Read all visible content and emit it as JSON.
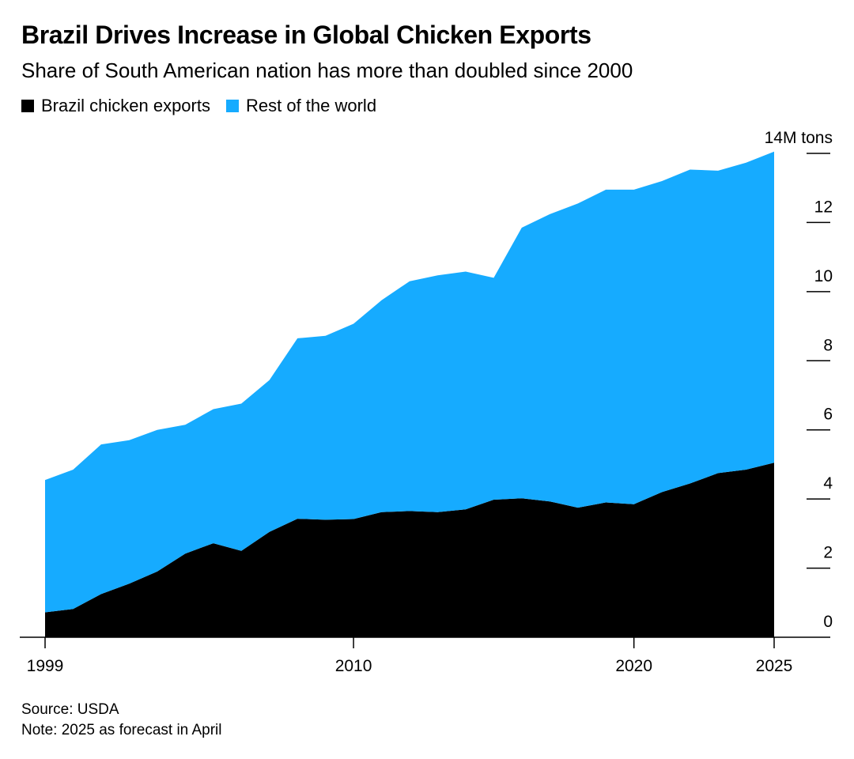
{
  "header": {
    "title": "Brazil Drives Increase in Global Chicken Exports",
    "subtitle": "Share of South American nation has more than doubled since 2000"
  },
  "footer": {
    "source": "Source: USDA",
    "note": "Note: 2025 as forecast in April"
  },
  "chart_data": {
    "type": "area",
    "stacked": true,
    "title": "Brazil Drives Increase in Global Chicken Exports",
    "subtitle": "Share of South American nation has more than doubled since 2000",
    "x": [
      1999,
      2000,
      2001,
      2002,
      2003,
      2004,
      2005,
      2006,
      2007,
      2008,
      2009,
      2010,
      2011,
      2012,
      2013,
      2014,
      2015,
      2016,
      2017,
      2018,
      2019,
      2020,
      2021,
      2022,
      2023,
      2024,
      2025
    ],
    "series": [
      {
        "name": "Brazil chicken exports",
        "color": "#000000",
        "values": [
          0.72,
          0.82,
          1.25,
          1.55,
          1.9,
          2.42,
          2.72,
          2.5,
          3.05,
          3.43,
          3.4,
          3.42,
          3.62,
          3.65,
          3.62,
          3.7,
          3.98,
          4.02,
          3.93,
          3.75,
          3.9,
          3.85,
          4.2,
          4.45,
          4.75,
          4.85,
          5.05
        ]
      },
      {
        "name": "Rest of the world",
        "color": "#16abff",
        "values": [
          3.83,
          4.03,
          4.33,
          4.15,
          4.1,
          3.73,
          3.88,
          4.26,
          4.39,
          5.22,
          5.32,
          5.65,
          6.13,
          6.65,
          6.85,
          6.88,
          6.42,
          7.83,
          8.31,
          8.8,
          9.05,
          9.1,
          9.0,
          9.08,
          8.75,
          8.88,
          9.0
        ]
      }
    ],
    "x_ticks": [
      "1999",
      "2010",
      "2020",
      "2025"
    ],
    "y_ticks": [
      {
        "value": 0,
        "label": "0"
      },
      {
        "value": 2,
        "label": "2"
      },
      {
        "value": 4,
        "label": "4"
      },
      {
        "value": 6,
        "label": "6"
      },
      {
        "value": 8,
        "label": "8"
      },
      {
        "value": 10,
        "label": "10"
      },
      {
        "value": 12,
        "label": "12"
      },
      {
        "value": 14,
        "label": "14M tons"
      }
    ],
    "xlim": [
      1999,
      2025
    ],
    "ylim": [
      0,
      14
    ],
    "y_axis_side": "right",
    "legend_position": "top-left",
    "grid": false
  }
}
